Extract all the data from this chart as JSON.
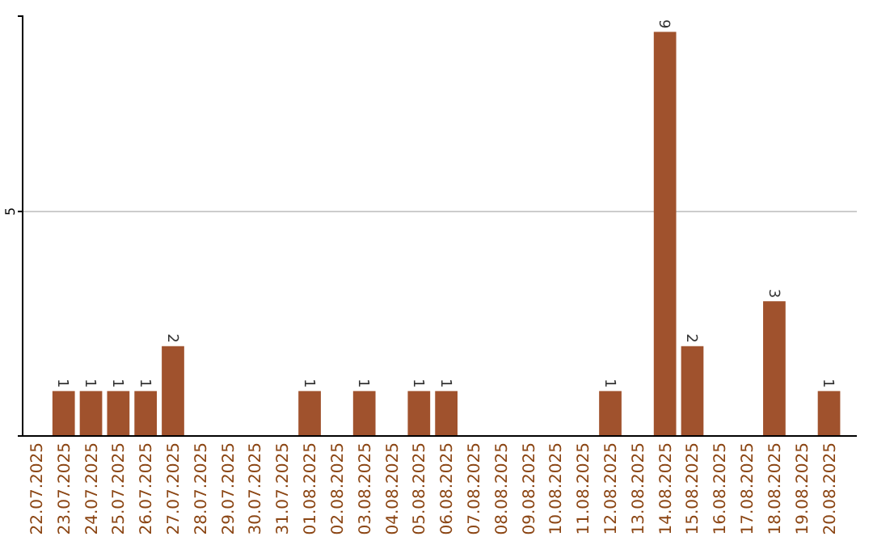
{
  "chart_data": {
    "type": "bar",
    "categories": [
      "22.07.2025",
      "23.07.2025",
      "24.07.2025",
      "25.07.2025",
      "26.07.2025",
      "27.07.2025",
      "28.07.2025",
      "29.07.2025",
      "30.07.2025",
      "31.07.2025",
      "01.08.2025",
      "02.08.2025",
      "03.08.2025",
      "04.08.2025",
      "05.08.2025",
      "06.08.2025",
      "07.08.2025",
      "08.08.2025",
      "09.08.2025",
      "10.08.2025",
      "11.08.2025",
      "12.08.2025",
      "13.08.2025",
      "14.08.2025",
      "15.08.2025",
      "16.08.2025",
      "17.08.2025",
      "18.08.2025",
      "19.08.2025",
      "20.08.2025"
    ],
    "values": [
      0,
      1,
      1,
      1,
      1,
      2,
      0,
      0,
      0,
      0,
      1,
      0,
      1,
      0,
      1,
      1,
      0,
      0,
      0,
      0,
      0,
      1,
      0,
      9,
      2,
      0,
      0,
      3,
      0,
      1
    ],
    "value_labels": [
      null,
      "1",
      "1",
      "1",
      "1",
      "2",
      null,
      null,
      null,
      null,
      "1",
      null,
      "1",
      null,
      "1",
      "1",
      null,
      null,
      null,
      null,
      null,
      "1",
      null,
      "9",
      "2",
      null,
      null,
      "3",
      null,
      "1"
    ],
    "color": "#a0522d",
    "ylim": [
      0,
      9.35
    ],
    "yticks": [
      5
    ],
    "grid": "y"
  }
}
